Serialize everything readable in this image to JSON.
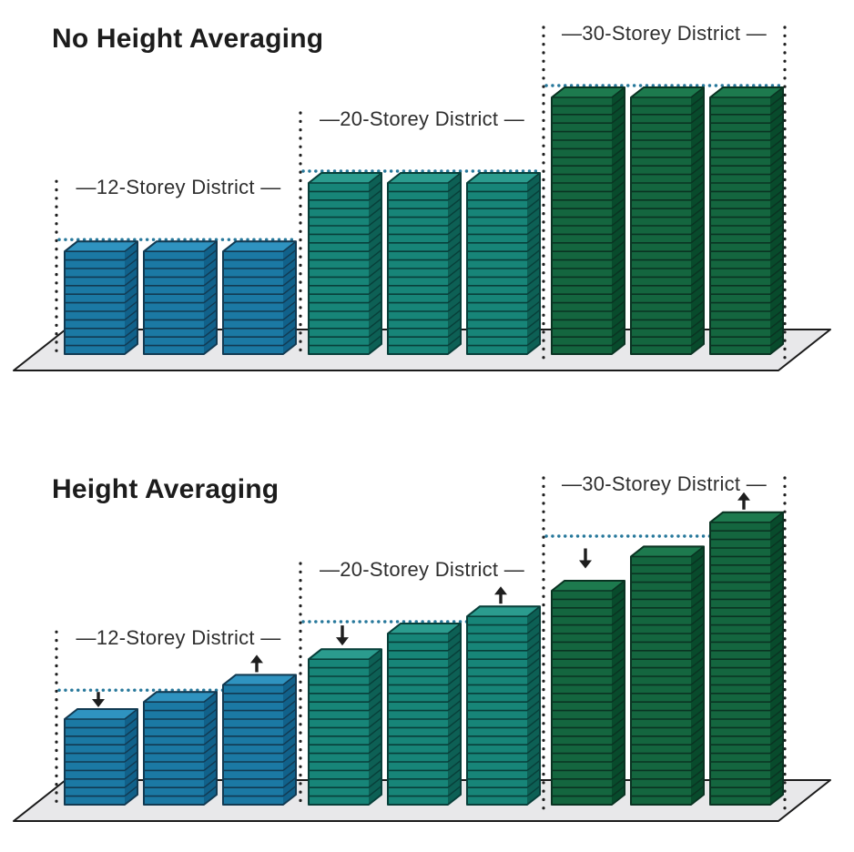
{
  "colors": {
    "background": "#ffffff",
    "title_text": "#1c1c1c",
    "label_text": "#2e2e2e",
    "district_boundary_dots": "#1f1f1f",
    "height_limit_dots": "#27789b",
    "ground_fill": "#e8e8ea",
    "ground_stroke": "#1b1b1b",
    "arrow": "#1e1e1e",
    "palettes": {
      "blue": {
        "front": "#1b79a4",
        "top": "#2f93c0",
        "side": "#11618a",
        "line": "#123a52"
      },
      "teal": {
        "front": "#178578",
        "top": "#2b9c8e",
        "side": "#0d6055",
        "line": "#083f3a"
      },
      "green": {
        "front": "#14663f",
        "top": "#1d7a4e",
        "side": "#084b2c",
        "line": "#0a3322"
      }
    }
  },
  "panels": [
    {
      "title": "No Height Averaging",
      "districts": [
        {
          "label": "—12-Storey District —",
          "storey_limit": 12,
          "palette": "blue",
          "building_storeys": [
            12,
            12,
            12
          ],
          "building_arrows": [
            null,
            null,
            null
          ]
        },
        {
          "label": "—20-Storey District —",
          "storey_limit": 20,
          "palette": "teal",
          "building_storeys": [
            20,
            20,
            20
          ],
          "building_arrows": [
            null,
            null,
            null
          ]
        },
        {
          "label": "—30-Storey District —",
          "storey_limit": 30,
          "palette": "green",
          "building_storeys": [
            30,
            30,
            30
          ],
          "building_arrows": [
            null,
            null,
            null
          ]
        }
      ]
    },
    {
      "title": "Height Averaging",
      "districts": [
        {
          "label": "—12-Storey District —",
          "storey_limit": 12,
          "palette": "blue",
          "building_storeys": [
            10,
            12,
            14
          ],
          "building_arrows": [
            "down",
            null,
            "up"
          ]
        },
        {
          "label": "—20-Storey District —",
          "storey_limit": 20,
          "palette": "teal",
          "building_storeys": [
            17,
            20,
            22
          ],
          "building_arrows": [
            "down",
            null,
            "up"
          ]
        },
        {
          "label": "—30-Storey District —",
          "storey_limit": 30,
          "palette": "green",
          "building_storeys": [
            25,
            29,
            33
          ],
          "building_arrows": [
            "down",
            null,
            "up"
          ]
        }
      ]
    }
  ]
}
